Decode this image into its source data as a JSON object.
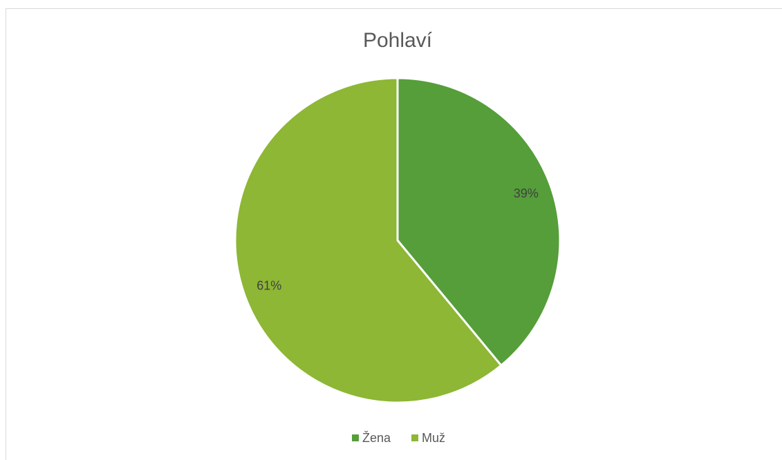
{
  "chart_data": {
    "type": "pie",
    "title": "Pohlaví",
    "categories": [
      "Žena",
      "Muž"
    ],
    "values": [
      39,
      61
    ],
    "value_labels": [
      "39%",
      "61%"
    ],
    "colors": [
      "#559e3a",
      "#8db735"
    ],
    "legend": "bottom"
  }
}
